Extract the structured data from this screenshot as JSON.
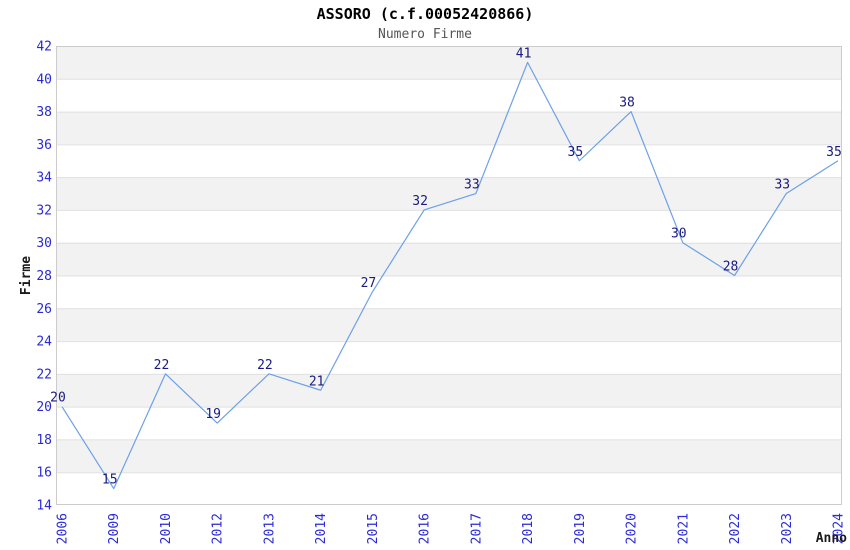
{
  "chart_data": {
    "type": "line",
    "title": "ASSORO (c.f.00052420866)",
    "subtitle": "Numero Firme",
    "xlabel": "Anno",
    "ylabel": "Firme",
    "categories": [
      "2006",
      "2009",
      "2010",
      "2012",
      "2013",
      "2014",
      "2015",
      "2016",
      "2017",
      "2018",
      "2019",
      "2020",
      "2021",
      "2022",
      "2023",
      "2024"
    ],
    "values": [
      20,
      15,
      22,
      19,
      22,
      21,
      27,
      32,
      33,
      41,
      35,
      38,
      30,
      28,
      33,
      35
    ],
    "ylim": [
      14,
      42
    ],
    "ytick_step": 2,
    "yticks": [
      14,
      16,
      18,
      20,
      22,
      24,
      26,
      28,
      30,
      32,
      34,
      36,
      38,
      40,
      42
    ],
    "grid": true,
    "legend_position": "none",
    "value_labels_shown": true,
    "colors": {
      "line": "#6ca0e8",
      "value_label": "#1a1a80",
      "tick_label": "#2a2ad8",
      "band_fill": "#f2f2f2",
      "grid_line": "#e0e0e0",
      "plot_border": "#cccccc",
      "title": "#000000",
      "subtitle": "#555555",
      "axis_title": "#1a1a1a",
      "background": "#ffffff"
    }
  }
}
